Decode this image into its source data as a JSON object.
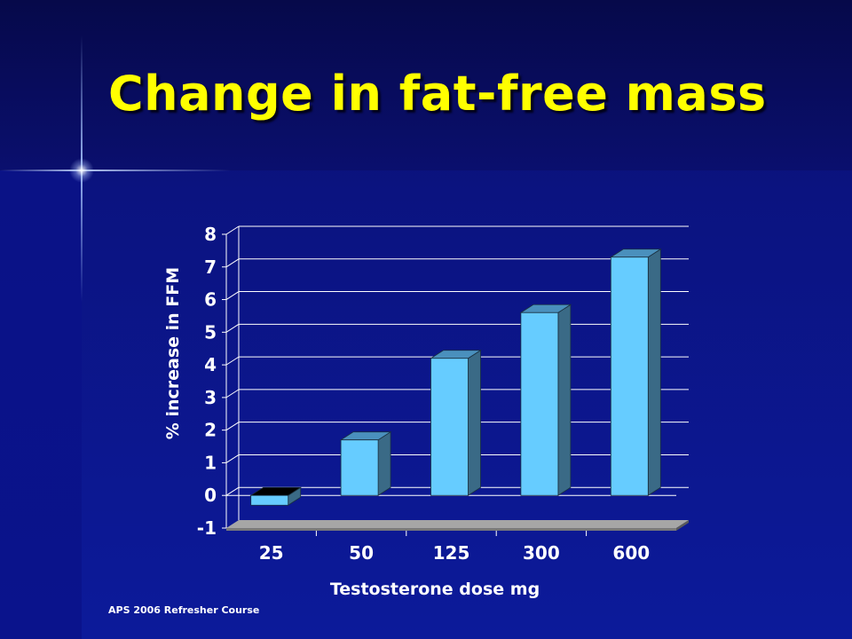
{
  "slide": {
    "title": "Change in fat-free mass",
    "footer": "APS 2006 Refresher Course"
  },
  "colors": {
    "title": "#ffff00",
    "bar_front": "#66ccff",
    "bar_side": "#3a6a86",
    "bar_top": "#4a90bd",
    "floor": "#a6a6a6",
    "gridline": "#ffffff"
  },
  "chart_data": {
    "type": "bar",
    "categories": [
      "25",
      "50",
      "125",
      "300",
      "600"
    ],
    "values": [
      -0.3,
      1.7,
      4.2,
      5.6,
      7.3
    ],
    "yticks": [
      "8",
      "7",
      "6",
      "5",
      "4",
      "3",
      "2",
      "1",
      "0",
      "-1"
    ],
    "xlabel": "Testosterone dose mg",
    "ylabel": "% increase in FFM",
    "ylim": [
      -1,
      8
    ],
    "grid": true,
    "legend": "none",
    "style": "3d-column"
  }
}
